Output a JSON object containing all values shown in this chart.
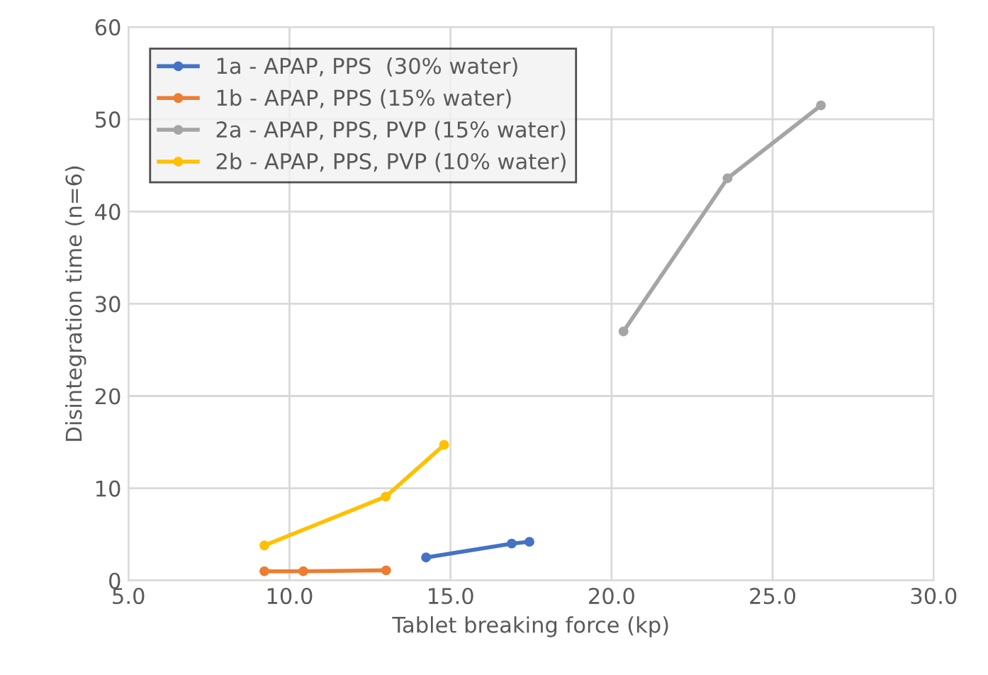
{
  "chart_data": {
    "type": "line",
    "xlabel": "Tablet breaking force (kp)",
    "ylabel": "Disintegration time (n=6)",
    "xlim": [
      5,
      30
    ],
    "xticks": [
      {
        "value": 5,
        "label": "5.0"
      },
      {
        "value": 10,
        "label": "10.0"
      },
      {
        "value": 15,
        "label": "15.0"
      },
      {
        "value": 20,
        "label": "20.0"
      },
      {
        "value": 25,
        "label": "25.0"
      },
      {
        "value": 30,
        "label": "30.0"
      }
    ],
    "ylim": [
      0,
      60
    ],
    "yticks": [
      0,
      10,
      20,
      30,
      40,
      50,
      60
    ],
    "grid": true,
    "legend": "top left",
    "marker": "circle",
    "line_style": "solid",
    "series": [
      {
        "name": "1a - APAP, PPS  (30% water)",
        "color": "#4472c4",
        "x": [
          14.24,
          16.9,
          17.45
        ],
        "values": [
          2.5,
          4.0,
          4.2
        ]
      },
      {
        "name": "1b - APAP, PPS (15% water)",
        "color": "#ed7d31",
        "x": [
          9.22,
          10.43,
          13.0
        ],
        "values": [
          1.0,
          1.0,
          1.1
        ]
      },
      {
        "name": "2a - APAP, PPS, PVP (15% water)",
        "color": "#a5a5a5",
        "x": [
          20.37,
          23.6,
          26.5
        ],
        "values": [
          27.0,
          43.6,
          51.5
        ]
      },
      {
        "name": "2b - APAP, PPS, PVP (10% water)",
        "color": "#ffc000",
        "x": [
          9.22,
          12.99,
          14.8
        ],
        "values": [
          3.8,
          9.1,
          14.7
        ]
      }
    ]
  }
}
